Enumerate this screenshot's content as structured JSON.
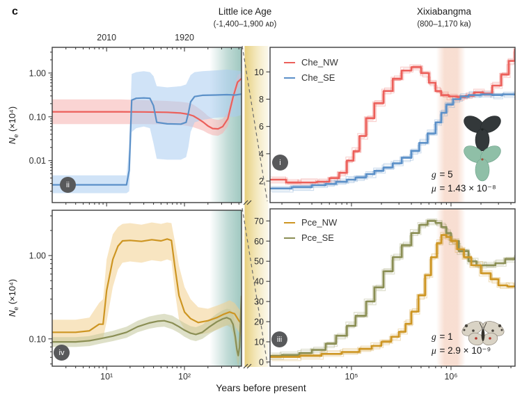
{
  "figure_label": "c",
  "header": {
    "little_ice_age": {
      "title": "Little ice Age",
      "subtitle": "(-1,400–1,900 ᴀᴅ)"
    },
    "xixiabangma": {
      "title": "Xixiabangma",
      "subtitle": "(800–1,170 ka)"
    }
  },
  "x_axis_label": "Years before present",
  "y_axis_label": {
    "sym": "N",
    "sub": "e",
    "units": " (×10⁴)"
  },
  "panels": {
    "i": {
      "badge": "i",
      "legend": [
        {
          "label": "Che_NW",
          "color": "#ec5f5a"
        },
        {
          "label": "Che_SE",
          "color": "#5b90c8"
        }
      ],
      "annotation": {
        "g_sym": "g",
        "g_val": " = 5",
        "mu_sym": "μ",
        "mu_val": " = 1.43 × 10⁻⁸"
      }
    },
    "ii": {
      "badge": "ii"
    },
    "iii": {
      "badge": "iii",
      "legend": [
        {
          "label": "Pce_NW",
          "color": "#cd9522"
        },
        {
          "label": "Pce_SE",
          "color": "#8a8e54"
        }
      ],
      "annotation": {
        "g_sym": "g",
        "g_val": " = 1",
        "mu_sym": "μ",
        "mu_val": " = 2.9 × 10⁻⁹"
      }
    },
    "iv": {
      "badge": "iv"
    }
  },
  "colors": {
    "che_nw": "#ec5f5a",
    "che_se": "#5b90c8",
    "pce_nw": "#cd9522",
    "pce_se": "#8a8e54",
    "teal_band": "#7fb5ab",
    "yellow_band": "#e5cc74",
    "salmon_band": "#e8936a",
    "axis": "#3c3c3c"
  },
  "chart_data": [
    {
      "id": "ii",
      "type": "line",
      "x_scale": "log",
      "y_scale": "log",
      "xlim": [
        2.0,
        540
      ],
      "ylim": [
        0.0011,
        3.86
      ],
      "x_ticks": [
        {
          "v": 10,
          "label": "10¹"
        },
        {
          "v": 100,
          "label": "10²"
        }
      ],
      "x_tick_labels_visible": false,
      "top_ticks": [
        {
          "v": 10,
          "label": "2010"
        },
        {
          "v": 100,
          "label": "1920"
        }
      ],
      "y_ticks": [
        {
          "v": 1,
          "label": "1.00"
        },
        {
          "v": 0.1,
          "label": "0.10"
        },
        {
          "v": 0.01,
          "label": "0.01"
        }
      ],
      "bands": [
        {
          "name": "little-ice-age-band",
          "x": [
            210,
            540
          ],
          "gradient": "teal"
        }
      ],
      "series": [
        {
          "name": "Che_NW",
          "color": "#ec5f5a",
          "band_color": "#f6b0ae",
          "interp": "line",
          "x": [
            2.0,
            4,
            8,
            15,
            30,
            60,
            90,
            110,
            130,
            150,
            175,
            200,
            230,
            270,
            310,
            360,
            420,
            480,
            540
          ],
          "y": [
            0.13,
            0.13,
            0.13,
            0.13,
            0.129,
            0.127,
            0.122,
            0.115,
            0.105,
            0.09,
            0.075,
            0.062,
            0.054,
            0.053,
            0.06,
            0.09,
            0.28,
            0.62,
            0.75
          ],
          "hi": [
            0.25,
            0.25,
            0.25,
            0.25,
            0.24,
            0.23,
            0.22,
            0.21,
            0.19,
            0.16,
            0.13,
            0.105,
            0.09,
            0.085,
            0.09,
            0.13,
            0.42,
            0.9,
            1.02
          ],
          "lo": [
            0.068,
            0.068,
            0.068,
            0.068,
            0.068,
            0.067,
            0.065,
            0.062,
            0.058,
            0.053,
            0.048,
            0.042,
            0.038,
            0.037,
            0.042,
            0.06,
            0.18,
            0.42,
            0.52
          ]
        },
        {
          "name": "Che_SE",
          "color": "#5b90c8",
          "band_color": "#a9ccf0",
          "interp": "line",
          "x": [
            2.0,
            5,
            10,
            18,
            19.5,
            21,
            24,
            30,
            36,
            40,
            44,
            60,
            90,
            105,
            112,
            120,
            135,
            170,
            250,
            350,
            450,
            540
          ],
          "y": [
            0.0028,
            0.0028,
            0.0028,
            0.0028,
            0.006,
            0.24,
            0.265,
            0.27,
            0.265,
            0.18,
            0.075,
            0.069,
            0.068,
            0.075,
            0.12,
            0.22,
            0.29,
            0.31,
            0.315,
            0.32,
            0.315,
            0.33
          ],
          "hi": [
            0.0046,
            0.0046,
            0.0046,
            0.0046,
            0.02,
            0.95,
            1.05,
            1.1,
            1.05,
            0.85,
            0.5,
            0.47,
            0.5,
            0.55,
            0.7,
            0.9,
            1.05,
            1.1,
            1.15,
            1.2,
            1.15,
            1.1
          ],
          "lo": [
            0.0018,
            0.0018,
            0.0018,
            0.0018,
            0.002,
            0.045,
            0.055,
            0.06,
            0.055,
            0.025,
            0.011,
            0.0105,
            0.0105,
            0.012,
            0.02,
            0.045,
            0.075,
            0.085,
            0.095,
            0.1,
            0.1,
            0.11
          ]
        }
      ]
    },
    {
      "id": "iv",
      "type": "line",
      "x_scale": "log",
      "y_scale": "log",
      "xlim": [
        2.0,
        540
      ],
      "ylim": [
        0.047,
        3.5
      ],
      "x_ticks": [
        {
          "v": 10,
          "label": "10¹"
        },
        {
          "v": 100,
          "label": "10²"
        }
      ],
      "x_tick_labels_visible": true,
      "y_ticks": [
        {
          "v": 1,
          "label": "1.00"
        },
        {
          "v": 0.1,
          "label": "0.10"
        }
      ],
      "bands": [
        {
          "name": "little-ice-age-band",
          "x": [
            210,
            540
          ],
          "gradient": "teal"
        }
      ],
      "series": [
        {
          "name": "Pce_NW",
          "color": "#cd9522",
          "band_color": "#f2cf8e",
          "interp": "line",
          "x": [
            2.0,
            4,
            6,
            8,
            9,
            10,
            12,
            14,
            16,
            20,
            28,
            38,
            50,
            60,
            68,
            75,
            85,
            100,
            120,
            150,
            200,
            260,
            320,
            380,
            440,
            500,
            540
          ],
          "y": [
            0.12,
            0.12,
            0.125,
            0.15,
            0.15,
            0.38,
            0.9,
            1.3,
            1.5,
            1.52,
            1.48,
            1.55,
            1.5,
            1.58,
            1.52,
            0.75,
            0.33,
            0.21,
            0.175,
            0.157,
            0.165,
            0.18,
            0.198,
            0.21,
            0.2,
            0.165,
            0.152
          ],
          "hi": [
            0.17,
            0.17,
            0.18,
            0.27,
            0.3,
            0.9,
            1.8,
            2.2,
            2.4,
            2.45,
            2.35,
            2.5,
            2.4,
            2.5,
            2.45,
            1.5,
            0.75,
            0.42,
            0.3,
            0.24,
            0.23,
            0.25,
            0.27,
            0.29,
            0.27,
            0.23,
            0.21
          ],
          "lo": [
            0.09,
            0.09,
            0.092,
            0.1,
            0.102,
            0.16,
            0.42,
            0.68,
            0.82,
            0.85,
            0.82,
            0.88,
            0.85,
            0.9,
            0.86,
            0.38,
            0.17,
            0.13,
            0.12,
            0.112,
            0.118,
            0.128,
            0.14,
            0.15,
            0.145,
            0.12,
            0.11
          ]
        },
        {
          "name": "Pce_SE",
          "color": "#8a8e54",
          "band_color": "#c2c79b",
          "interp": "line",
          "x": [
            2.0,
            4,
            6,
            8,
            12,
            18,
            25,
            35,
            45,
            55,
            70,
            85,
            100,
            120,
            140,
            170,
            210,
            260,
            310,
            350,
            390,
            420,
            450,
            470,
            490,
            510,
            530,
            540
          ],
          "y": [
            0.092,
            0.092,
            0.095,
            0.1,
            0.108,
            0.12,
            0.14,
            0.155,
            0.163,
            0.165,
            0.155,
            0.14,
            0.127,
            0.117,
            0.113,
            0.12,
            0.14,
            0.16,
            0.174,
            0.18,
            0.172,
            0.15,
            0.105,
            0.075,
            0.063,
            0.08,
            0.22,
            0.33
          ],
          "hi": [
            0.105,
            0.105,
            0.108,
            0.115,
            0.125,
            0.14,
            0.165,
            0.185,
            0.195,
            0.2,
            0.19,
            0.17,
            0.155,
            0.142,
            0.138,
            0.148,
            0.172,
            0.2,
            0.22,
            0.23,
            0.225,
            0.2,
            0.15,
            0.11,
            0.09,
            0.12,
            0.3,
            0.42
          ],
          "lo": [
            0.08,
            0.08,
            0.082,
            0.087,
            0.094,
            0.103,
            0.12,
            0.132,
            0.138,
            0.14,
            0.13,
            0.118,
            0.106,
            0.097,
            0.094,
            0.1,
            0.115,
            0.13,
            0.14,
            0.145,
            0.138,
            0.115,
            0.078,
            0.055,
            0.046,
            0.058,
            0.16,
            0.25
          ]
        }
      ]
    },
    {
      "id": "i",
      "type": "step",
      "x_scale": "log",
      "y_scale": "linear",
      "xlim": [
        15200,
        4400000
      ],
      "ylim": [
        0.42,
        11.8
      ],
      "x_ticks": [
        {
          "v": 100000,
          "label": "10⁵"
        },
        {
          "v": 1000000,
          "label": "10⁶"
        }
      ],
      "x_tick_labels_visible": false,
      "y_ticks": [
        {
          "v": 2,
          "label": "2"
        },
        {
          "v": 4,
          "label": "4"
        },
        {
          "v": 6,
          "label": "6"
        },
        {
          "v": 8,
          "label": "8"
        },
        {
          "v": 10,
          "label": "10"
        }
      ],
      "bands": [
        {
          "name": "xixiabangma-band",
          "x": [
            710000,
            1400000
          ],
          "gradient": "salmon"
        }
      ],
      "replicates": 6,
      "series": [
        {
          "name": "Che_NW",
          "color": "#ec5f5a",
          "interp": "step",
          "x": [
            15200,
            22000,
            30000,
            45000,
            60000,
            75000,
            90000,
            105000,
            120000,
            140000,
            170000,
            210000,
            260000,
            320000,
            400000,
            500000,
            600000,
            700000,
            800000,
            950000,
            1150000,
            1400000,
            1700000,
            2100000,
            2600000,
            3200000,
            3800000,
            4400000
          ],
          "y": [
            2.1,
            1.9,
            1.9,
            1.95,
            2.2,
            2.6,
            3.5,
            4.2,
            5.3,
            6.6,
            7.7,
            8.6,
            9.5,
            10.1,
            10.35,
            9.9,
            9.2,
            8.6,
            8.3,
            8.2,
            8.15,
            8.25,
            8.5,
            8.4,
            9.0,
            9.8,
            10.8,
            11.7
          ]
        },
        {
          "name": "Che_SE",
          "color": "#5b90c8",
          "interp": "step",
          "x": [
            15200,
            25000,
            40000,
            55000,
            70000,
            90000,
            110000,
            140000,
            170000,
            210000,
            260000,
            320000,
            400000,
            480000,
            580000,
            700000,
            800000,
            900000,
            1050000,
            1250000,
            1500000,
            2000000,
            2600000,
            3300000,
            4400000
          ],
          "y": [
            1.45,
            1.55,
            1.7,
            1.8,
            1.95,
            2.1,
            2.25,
            2.5,
            2.75,
            3.0,
            3.3,
            3.7,
            4.2,
            4.8,
            5.5,
            6.3,
            7.0,
            7.6,
            8.0,
            8.2,
            8.3,
            8.35,
            8.3,
            8.35,
            8.3
          ]
        }
      ]
    },
    {
      "id": "iii",
      "type": "step",
      "x_scale": "log",
      "y_scale": "linear",
      "xlim": [
        15200,
        4400000
      ],
      "ylim": [
        -2.1,
        76
      ],
      "x_ticks": [
        {
          "v": 100000,
          "label": "10⁵"
        },
        {
          "v": 1000000,
          "label": "10⁶"
        }
      ],
      "x_tick_labels_visible": true,
      "y_ticks": [
        {
          "v": 0,
          "label": "0"
        },
        {
          "v": 10,
          "label": "10"
        },
        {
          "v": 20,
          "label": "20"
        },
        {
          "v": 30,
          "label": "30"
        },
        {
          "v": 40,
          "label": "40"
        },
        {
          "v": 50,
          "label": "50"
        },
        {
          "v": 60,
          "label": "60"
        },
        {
          "v": 70,
          "label": "70"
        }
      ],
      "bands": [
        {
          "name": "xixiabangma-band",
          "x": [
            710000,
            1400000
          ],
          "gradient": "salmon"
        }
      ],
      "replicates": 6,
      "series": [
        {
          "name": "Pce_SE",
          "color": "#8a8e54",
          "interp": "step",
          "x": [
            15200,
            20000,
            30000,
            40000,
            55000,
            70000,
            90000,
            110000,
            140000,
            170000,
            210000,
            260000,
            320000,
            400000,
            480000,
            580000,
            700000,
            800000,
            900000,
            1000000,
            1200000,
            1500000,
            1800000,
            2200000,
            2800000,
            3500000,
            4400000
          ],
          "y": [
            3,
            3.5,
            4.5,
            6,
            9,
            13,
            18,
            23,
            30,
            37,
            45,
            52,
            58,
            64,
            68,
            70,
            69,
            67,
            64,
            60,
            55,
            50,
            48,
            48,
            49,
            51,
            52
          ]
        },
        {
          "name": "Pce_NW",
          "color": "#cd9522",
          "interp": "step",
          "x": [
            15200,
            30000,
            50000,
            80000,
            120000,
            160000,
            200000,
            250000,
            300000,
            350000,
            400000,
            470000,
            550000,
            630000,
            720000,
            800000,
            900000,
            1000000,
            1150000,
            1350000,
            1600000,
            2000000,
            2500000,
            3000000,
            3700000,
            4400000
          ],
          "y": [
            2.5,
            3,
            4,
            5,
            6.5,
            8,
            10,
            12.5,
            15,
            19,
            25,
            33,
            43,
            52,
            59,
            63,
            62,
            60,
            56,
            52,
            48,
            44,
            41,
            38,
            37.5,
            38
          ]
        }
      ]
    }
  ]
}
